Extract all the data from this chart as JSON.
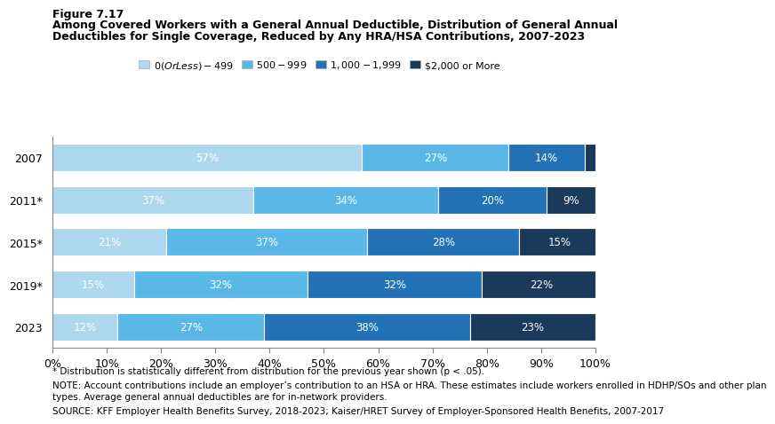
{
  "figure_label": "Figure 7.17",
  "title_line1": "Among Covered Workers with a General Annual Deductible, Distribution of General Annual",
  "title_line2": "Deductibles for Single Coverage, Reduced by Any HRA/HSA Contributions, 2007-2023",
  "years": [
    "2007",
    "2011*",
    "2015*",
    "2019*",
    "2023"
  ],
  "categories": [
    "$0 (Or Less) - $499",
    "$500 - $999",
    "$1,000 - $1,999",
    "$2,000 or More"
  ],
  "colors": [
    "#add8f0",
    "#5ab8e8",
    "#2272b5",
    "#1a3a5c"
  ],
  "data": [
    [
      57,
      27,
      14,
      3
    ],
    [
      37,
      34,
      20,
      9
    ],
    [
      21,
      37,
      28,
      15
    ],
    [
      15,
      32,
      32,
      22
    ],
    [
      12,
      27,
      38,
      23
    ]
  ],
  "footnote1": "* Distribution is statistically different from distribution for the previous year shown (p < .05).",
  "footnote2": "NOTE: Account contributions include an employer’s contribution to an HSA or HRA. These estimates include workers enrolled in HDHP/SOs and other plan",
  "footnote2b": "types. Average general annual deductibles are for in-network providers.",
  "footnote3": "SOURCE: KFF Employer Health Benefits Survey, 2018-2023; Kaiser/HRET Survey of Employer-Sponsored Health Benefits, 2007-2017",
  "bar_height": 0.65
}
